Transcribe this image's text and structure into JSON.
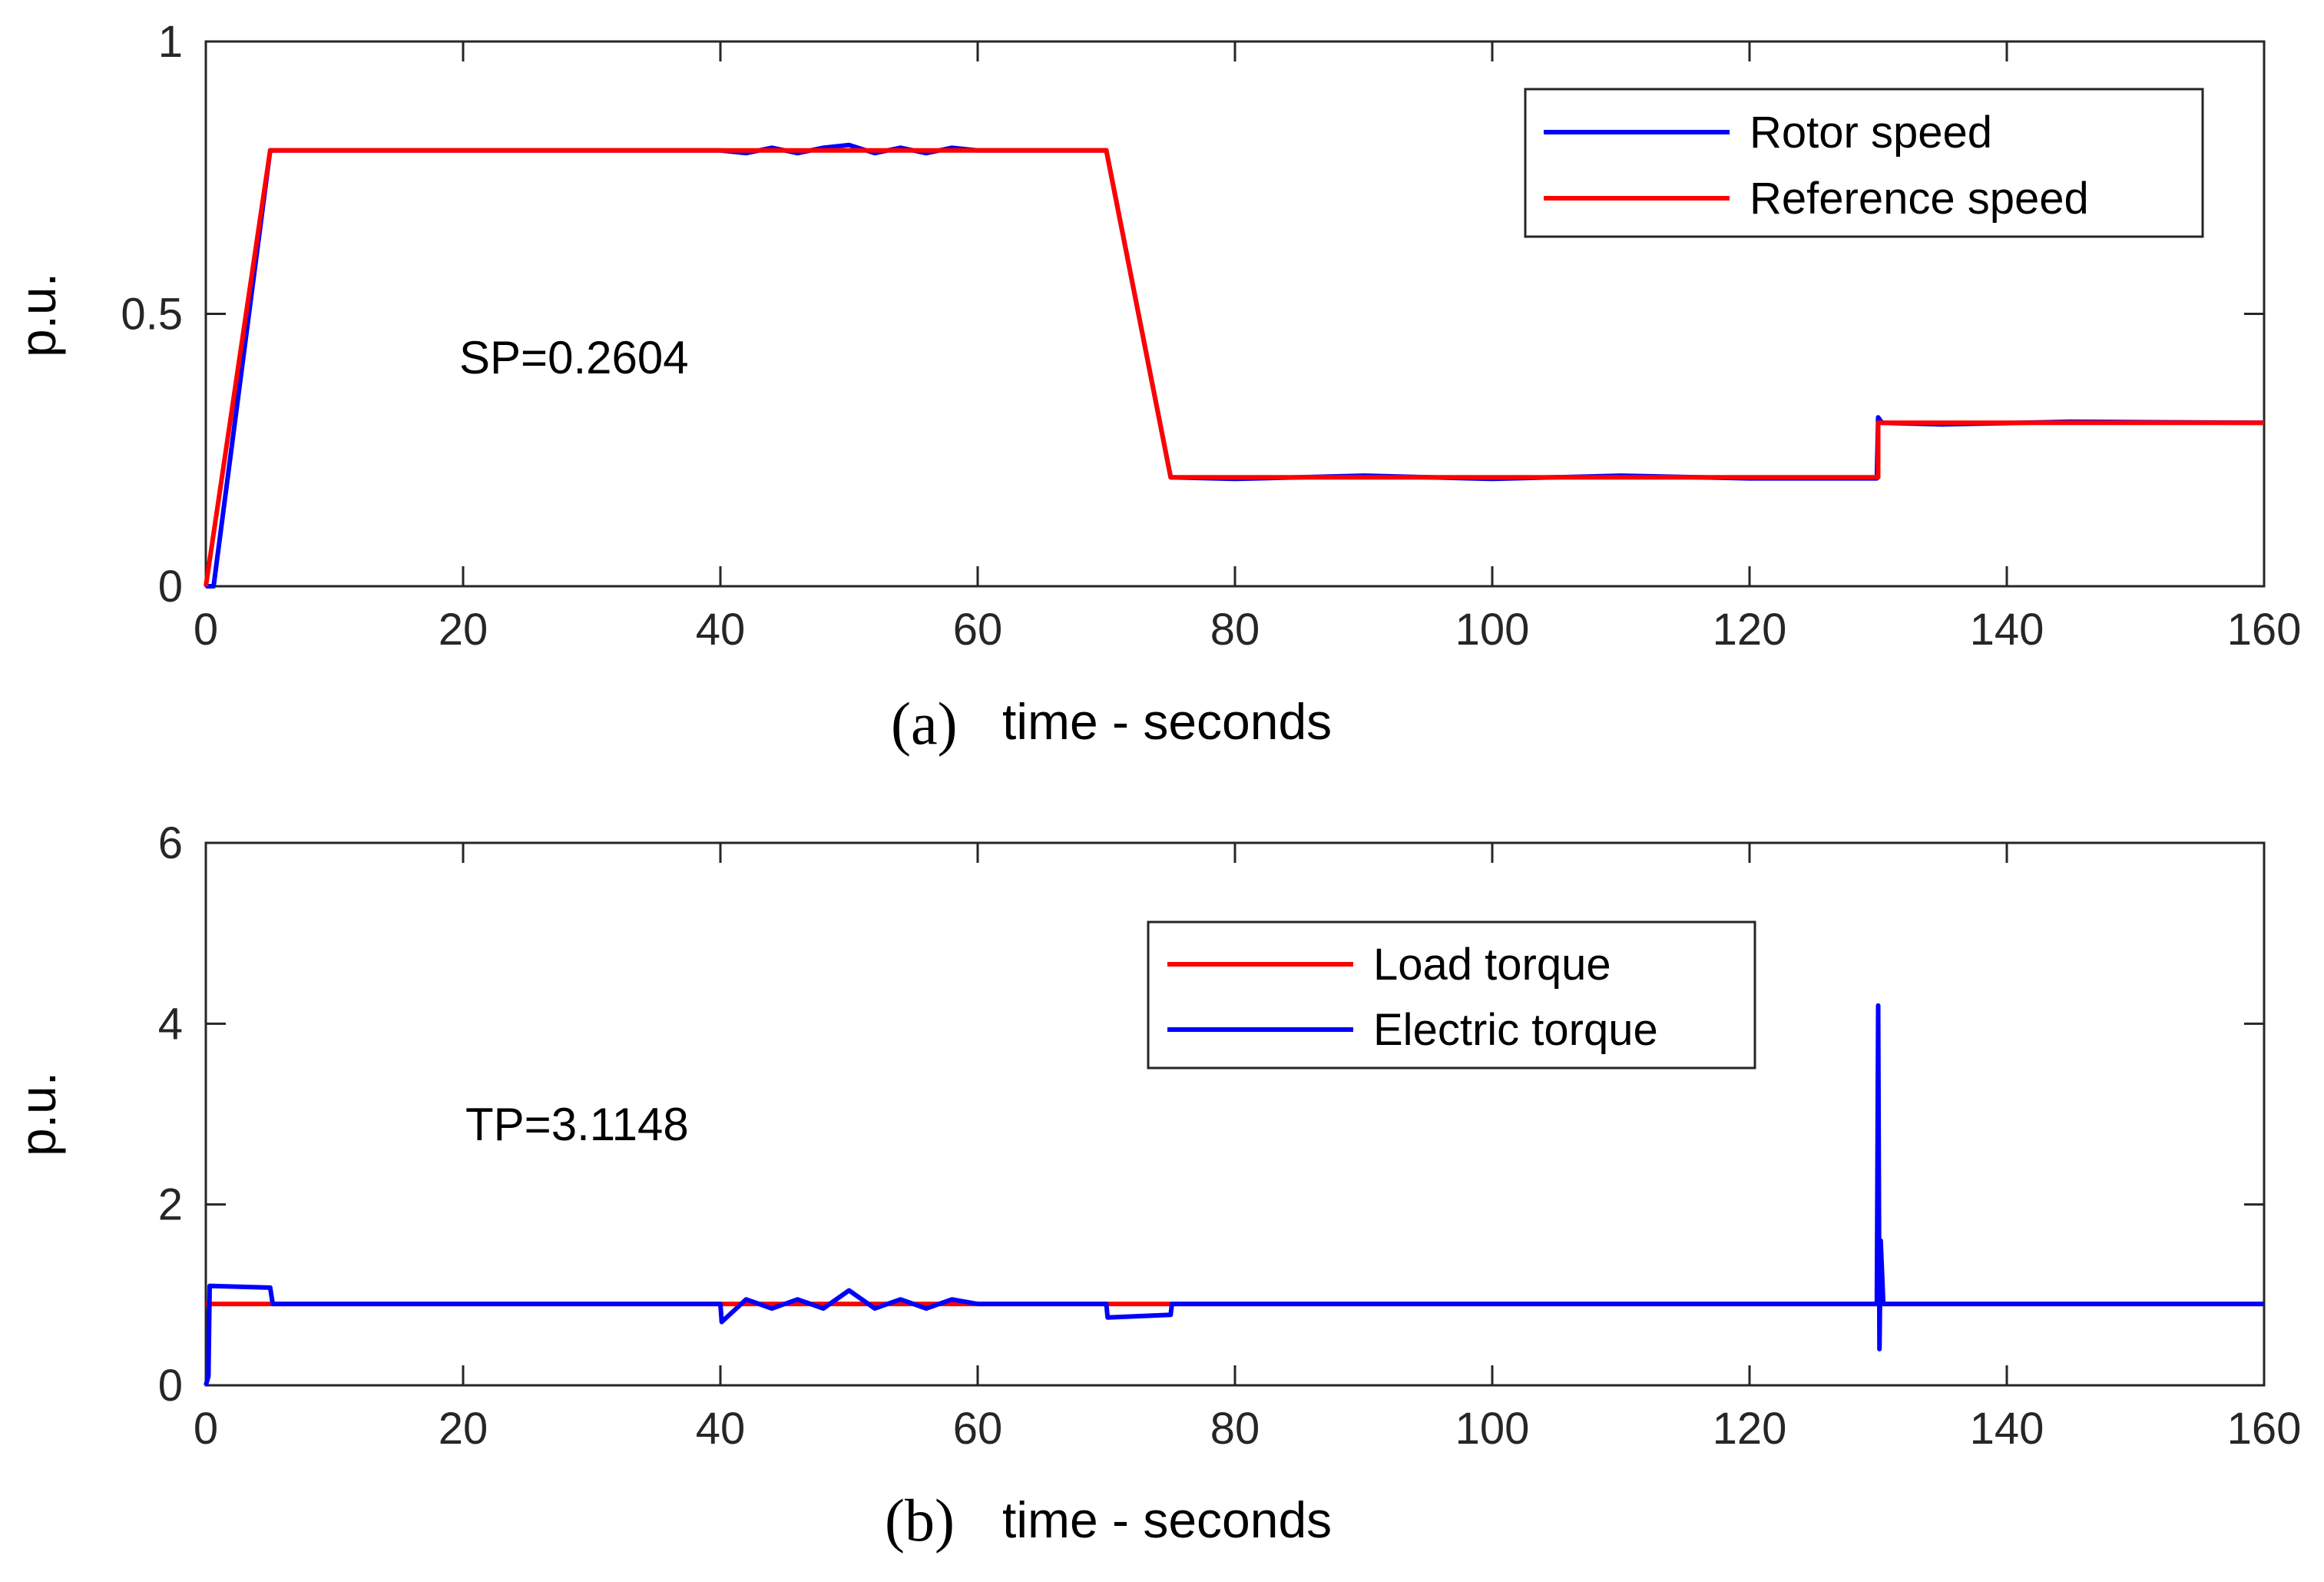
{
  "chart_data": [
    {
      "type": "line",
      "panel_label": "(a)",
      "xlabel": "time - seconds",
      "ylabel": "p.u.",
      "xlim": [
        0,
        160
      ],
      "ylim": [
        0,
        1
      ],
      "xticks": [
        0,
        20,
        40,
        60,
        80,
        100,
        120,
        140,
        160
      ],
      "yticks": [
        0,
        0.5,
        1
      ],
      "yticklabels": [
        "0",
        "0.5",
        "1"
      ],
      "annotation": "SP=0.2604",
      "legend_position": "top-right",
      "series": [
        {
          "name": "Rotor speed",
          "color": "#0000ff",
          "x": [
            0,
            0.6,
            5,
            40,
            42,
            44,
            46,
            48,
            50,
            52,
            54,
            56,
            58,
            60,
            70,
            75,
            80,
            90,
            100,
            110,
            120,
            129.9,
            130,
            130.3,
            135,
            145,
            160
          ],
          "y": [
            0,
            0,
            0.8,
            0.8,
            0.795,
            0.805,
            0.795,
            0.805,
            0.81,
            0.795,
            0.805,
            0.795,
            0.805,
            0.8,
            0.8,
            0.2,
            0.197,
            0.203,
            0.197,
            0.203,
            0.198,
            0.198,
            0.31,
            0.3,
            0.297,
            0.302,
            0.3
          ]
        },
        {
          "name": "Reference speed",
          "color": "#ff0000",
          "x": [
            0,
            5,
            70,
            75,
            130,
            130,
            160
          ],
          "y": [
            0,
            0.8,
            0.8,
            0.2,
            0.2,
            0.3,
            0.3
          ]
        }
      ]
    },
    {
      "type": "line",
      "panel_label": "(b)",
      "xlabel": "time - seconds",
      "ylabel": "p.u.",
      "xlim": [
        0,
        160
      ],
      "ylim": [
        0,
        6
      ],
      "xticks": [
        0,
        20,
        40,
        60,
        80,
        100,
        120,
        140,
        160
      ],
      "yticks": [
        0,
        2,
        4,
        6
      ],
      "yticklabels": [
        "0",
        "2",
        "4",
        "6"
      ],
      "annotation": "TP=3.1148",
      "legend_position": "top-right",
      "series": [
        {
          "name": "Load torque",
          "color": "#ff0000",
          "x": [
            0,
            5,
            5,
            70,
            75,
            160
          ],
          "y": [
            0.9,
            0.9,
            0.9,
            0.9,
            0.9,
            0.9
          ]
        },
        {
          "name": "Electric torque",
          "color": "#0000ff",
          "x": [
            0,
            0.2,
            0.3,
            5,
            5.2,
            40,
            40.1,
            42,
            44,
            46,
            48,
            50,
            52,
            54,
            56,
            58,
            60,
            70,
            70.1,
            75,
            75.1,
            129.9,
            130,
            130.1,
            130.2,
            130.4,
            135,
            160
          ],
          "y": [
            0,
            0.1,
            1.1,
            1.08,
            0.9,
            0.9,
            0.7,
            0.95,
            0.85,
            0.95,
            0.85,
            1.05,
            0.85,
            0.95,
            0.85,
            0.95,
            0.9,
            0.9,
            0.75,
            0.78,
            0.9,
            0.9,
            4.2,
            0.4,
            1.6,
            0.9,
            0.9,
            0.9
          ]
        }
      ]
    }
  ]
}
